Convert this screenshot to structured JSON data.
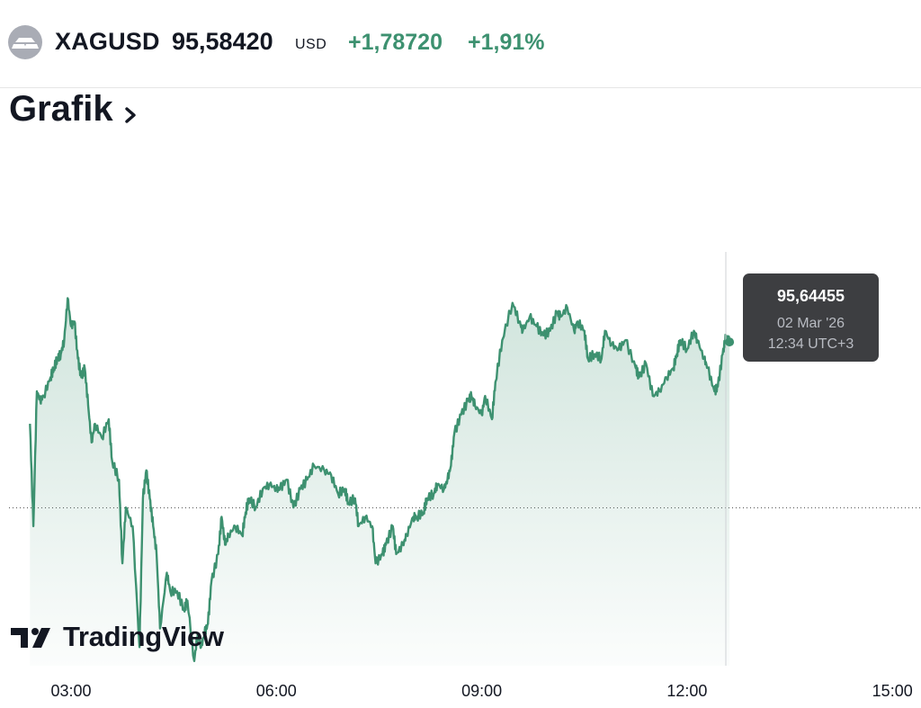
{
  "header": {
    "symbol": "XAGUSD",
    "price": "95,58420",
    "currency": "USD",
    "change": "+1,78720",
    "change_pct": "+1,91%",
    "logo_icon": "silver-bars-icon"
  },
  "section": {
    "title": "Grafik",
    "chevron_icon": "chevron-right-icon"
  },
  "tooltip": {
    "value": "95,64455",
    "date": "02 Mar '26",
    "time": "12:34 UTC+3"
  },
  "branding": {
    "name": "TradingView",
    "icon": "tradingview-logo-icon"
  },
  "colors": {
    "line": "#3d9170",
    "positive": "#3d9170",
    "tooltip_bg": "#3d3e41"
  },
  "chart_data": {
    "type": "area",
    "x_ticks": [
      "03:00",
      "06:00",
      "09:00",
      "12:00",
      "15:00"
    ],
    "x_tick_hours": [
      3,
      6,
      9,
      12,
      15
    ],
    "ylim": [
      92.1,
      96.5
    ],
    "previous_close": 93.797,
    "crosshair_time": 12.57,
    "series": [
      {
        "points": [
          [
            2.4,
            94.7
          ],
          [
            2.45,
            93.6
          ],
          [
            2.5,
            95.05
          ],
          [
            2.55,
            94.95
          ],
          [
            2.6,
            95.0
          ],
          [
            2.7,
            95.2
          ],
          [
            2.75,
            95.3
          ],
          [
            2.8,
            95.4
          ],
          [
            2.85,
            95.45
          ],
          [
            2.9,
            95.6
          ],
          [
            2.95,
            96.05
          ],
          [
            3.0,
            95.75
          ],
          [
            3.05,
            95.8
          ],
          [
            3.1,
            95.4
          ],
          [
            3.15,
            95.2
          ],
          [
            3.2,
            95.3
          ],
          [
            3.25,
            94.9
          ],
          [
            3.3,
            94.5
          ],
          [
            3.35,
            94.7
          ],
          [
            3.45,
            94.55
          ],
          [
            3.55,
            94.75
          ],
          [
            3.6,
            94.3
          ],
          [
            3.7,
            94.1
          ],
          [
            3.75,
            93.2
          ],
          [
            3.8,
            93.8
          ],
          [
            3.9,
            93.6
          ],
          [
            4.0,
            92.3
          ],
          [
            4.05,
            93.9
          ],
          [
            4.1,
            94.2
          ],
          [
            4.15,
            93.9
          ],
          [
            4.2,
            93.6
          ],
          [
            4.25,
            93.3
          ],
          [
            4.3,
            92.5
          ],
          [
            4.4,
            93.1
          ],
          [
            4.45,
            92.9
          ],
          [
            4.55,
            92.9
          ],
          [
            4.65,
            92.7
          ],
          [
            4.7,
            92.8
          ],
          [
            4.8,
            92.15
          ],
          [
            4.85,
            92.45
          ],
          [
            4.9,
            92.3
          ],
          [
            4.95,
            92.45
          ],
          [
            5.0,
            92.55
          ],
          [
            5.05,
            93.0
          ],
          [
            5.15,
            93.3
          ],
          [
            5.2,
            93.7
          ],
          [
            5.25,
            93.4
          ],
          [
            5.3,
            93.5
          ],
          [
            5.4,
            93.6
          ],
          [
            5.5,
            93.5
          ],
          [
            5.55,
            93.75
          ],
          [
            5.6,
            93.9
          ],
          [
            5.7,
            93.8
          ],
          [
            5.8,
            94.0
          ],
          [
            5.9,
            94.05
          ],
          [
            6.0,
            94.0
          ],
          [
            6.05,
            94.0
          ],
          [
            6.15,
            94.1
          ],
          [
            6.25,
            93.8
          ],
          [
            6.35,
            94.0
          ],
          [
            6.45,
            94.1
          ],
          [
            6.55,
            94.25
          ],
          [
            6.7,
            94.2
          ],
          [
            6.8,
            94.15
          ],
          [
            6.9,
            93.95
          ],
          [
            7.0,
            94.0
          ],
          [
            7.05,
            93.85
          ],
          [
            7.15,
            93.9
          ],
          [
            7.2,
            93.6
          ],
          [
            7.3,
            93.7
          ],
          [
            7.4,
            93.6
          ],
          [
            7.45,
            93.2
          ],
          [
            7.55,
            93.3
          ],
          [
            7.6,
            93.4
          ],
          [
            7.7,
            93.6
          ],
          [
            7.75,
            93.3
          ],
          [
            7.85,
            93.4
          ],
          [
            7.9,
            93.5
          ],
          [
            8.0,
            93.7
          ],
          [
            8.05,
            93.7
          ],
          [
            8.15,
            93.75
          ],
          [
            8.2,
            93.9
          ],
          [
            8.3,
            93.95
          ],
          [
            8.35,
            94.05
          ],
          [
            8.45,
            94.0
          ],
          [
            8.5,
            94.1
          ],
          [
            8.55,
            94.25
          ],
          [
            8.6,
            94.6
          ],
          [
            8.7,
            94.8
          ],
          [
            8.8,
            94.95
          ],
          [
            8.85,
            95.0
          ],
          [
            8.9,
            94.9
          ],
          [
            9.0,
            94.8
          ],
          [
            9.05,
            95.0
          ],
          [
            9.15,
            94.75
          ],
          [
            9.2,
            95.15
          ],
          [
            9.3,
            95.6
          ],
          [
            9.45,
            96.0
          ],
          [
            9.55,
            95.8
          ],
          [
            9.6,
            95.7
          ],
          [
            9.7,
            95.85
          ],
          [
            9.8,
            95.75
          ],
          [
            9.9,
            95.65
          ],
          [
            10.0,
            95.7
          ],
          [
            10.1,
            95.9
          ],
          [
            10.15,
            95.85
          ],
          [
            10.25,
            95.95
          ],
          [
            10.35,
            95.7
          ],
          [
            10.4,
            95.8
          ],
          [
            10.5,
            95.7
          ],
          [
            10.55,
            95.4
          ],
          [
            10.65,
            95.45
          ],
          [
            10.75,
            95.4
          ],
          [
            10.8,
            95.7
          ],
          [
            10.9,
            95.55
          ],
          [
            11.0,
            95.5
          ],
          [
            11.1,
            95.6
          ],
          [
            11.25,
            95.3
          ],
          [
            11.3,
            95.2
          ],
          [
            11.4,
            95.35
          ],
          [
            11.5,
            95.0
          ],
          [
            11.6,
            95.05
          ],
          [
            11.7,
            95.2
          ],
          [
            11.8,
            95.3
          ],
          [
            11.85,
            95.45
          ],
          [
            11.9,
            95.6
          ],
          [
            12.0,
            95.5
          ],
          [
            12.1,
            95.7
          ],
          [
            12.15,
            95.6
          ],
          [
            12.25,
            95.4
          ],
          [
            12.3,
            95.3
          ],
          [
            12.4,
            95.05
          ],
          [
            12.45,
            95.1
          ],
          [
            12.52,
            95.45
          ],
          [
            12.57,
            95.64
          ],
          [
            12.62,
            95.58
          ]
        ]
      }
    ]
  }
}
